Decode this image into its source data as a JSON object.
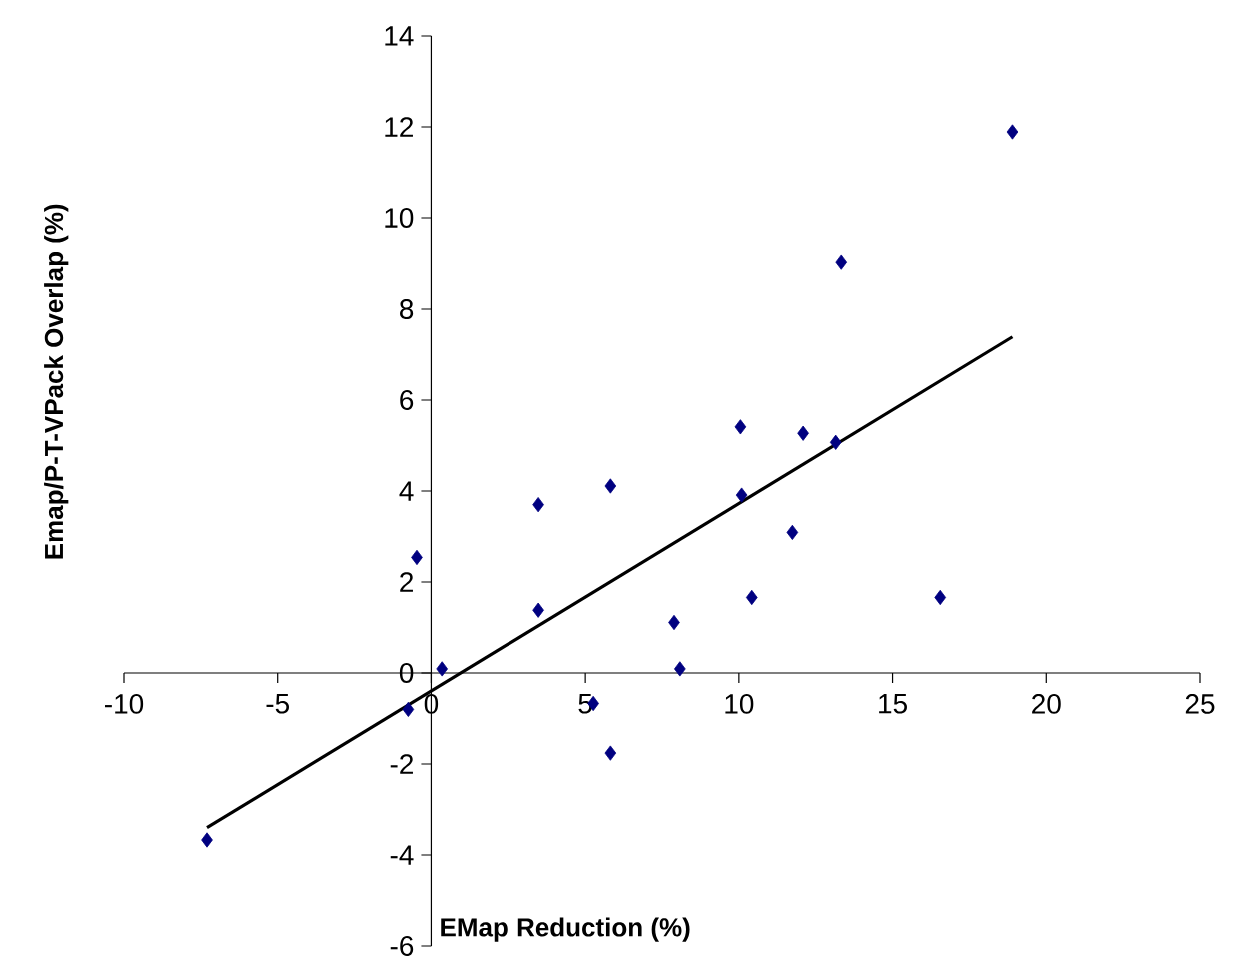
{
  "chart_data": {
    "type": "scatter",
    "xlabel": "EMap Reduction (%)",
    "ylabel": "Emap/P-T-VPack Overlap (%)",
    "xlim": [
      -10,
      25
    ],
    "ylim": [
      -6,
      14
    ],
    "xticks": [
      -10,
      -5,
      0,
      5,
      10,
      15,
      20,
      25
    ],
    "yticks": [
      -6,
      -4,
      -2,
      0,
      2,
      4,
      6,
      8,
      10,
      12,
      14
    ],
    "series": [
      {
        "type": "scatter",
        "color": "#000080",
        "marker": "diamond",
        "x": [
          -7.3,
          -0.75,
          -0.47,
          0.35,
          3.47,
          3.47,
          5.26,
          5.82,
          5.82,
          7.89,
          8.08,
          10.05,
          10.09,
          10.42,
          11.74,
          12.09,
          13.15,
          13.33,
          16.55,
          18.9
        ],
        "values": [
          -3.67,
          -0.8,
          2.54,
          0.09,
          3.7,
          1.38,
          -0.67,
          4.11,
          -1.76,
          1.11,
          0.09,
          5.41,
          3.91,
          1.66,
          3.09,
          5.27,
          5.07,
          9.03,
          1.66,
          11.89
        ]
      },
      {
        "type": "line",
        "color": "#000000",
        "marker": "none",
        "x": [
          -7.3,
          18.9
        ],
        "values": [
          -3.4,
          7.39
        ]
      }
    ]
  }
}
